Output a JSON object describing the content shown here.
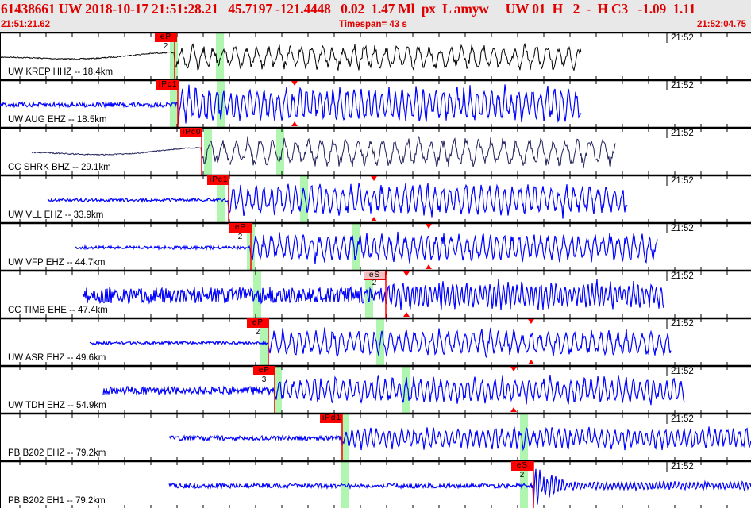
{
  "header": {
    "title": "61438661 UW 2018-10-17 21:51:28.21   45.7197 -121.4448   0.02  1.47 Ml  px  L amyw     UW 01  H   2  -  H C3   -1.09  1.11",
    "start_time": "21:51:21.62",
    "timespan": "Timespan=  43 s",
    "end_time": "21:52:04.75"
  },
  "time_marker": "21:52",
  "colors": {
    "pick": "#ff0000",
    "window": "#b0f5b0",
    "trace_blue": "#0000ff",
    "trace_black": "#000000",
    "trace_navy": "#20205a",
    "header_text": "#e00000"
  },
  "traces": [
    {
      "label": "UW KREP HHZ -- 18.4km",
      "pick": "eP 2"
    },
    {
      "label": "UW AUG EHZ -- 18.5km",
      "pick": "iPc1"
    },
    {
      "label": "CC SHRK BHZ -- 29.1km",
      "pick": "iPc0"
    },
    {
      "label": "UW VLL EHZ -- 33.9km",
      "pick": "iPc1"
    },
    {
      "label": "UW VFP EHZ -- 44.7km",
      "pick": "eP 2"
    },
    {
      "label": "CC TIMB EHE -- 47.4km",
      "pick": "eS 2"
    },
    {
      "label": "UW ASR EHZ -- 49.6km",
      "pick": "eP 2"
    },
    {
      "label": "UW TDH EHZ -- 54.9km",
      "pick": "eP 3"
    },
    {
      "label": "PB B202 EHZ -- 79.2km",
      "pick": "iPd1"
    },
    {
      "label": "PB B202 EH1 -- 79.2km",
      "pick": "eS 2"
    }
  ]
}
